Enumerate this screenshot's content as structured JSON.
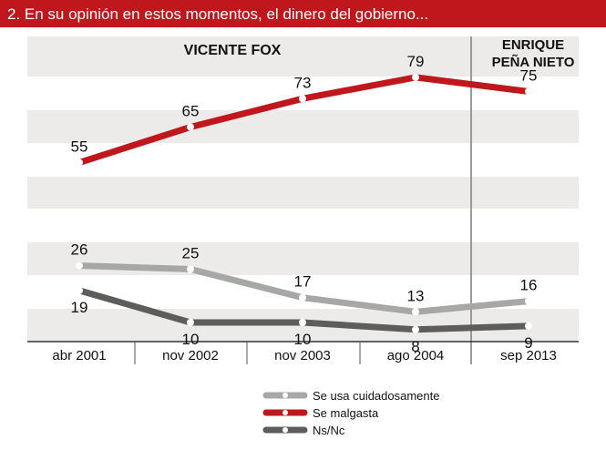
{
  "header": {
    "title": "2. En su opinión en estos momentos, el dinero del gobierno..."
  },
  "periods": {
    "left": "VICENTE FOX",
    "right_line1": "ENRIQUE",
    "right_line2": "PEÑA NIETO"
  },
  "colors": {
    "header_bg": "#c0171d",
    "plot_bg": "#ecebea",
    "band_white": "#ffffff",
    "series_cuidadosamente": "#a7a7a6",
    "series_malgasta": "#c0171d",
    "series_nsnc": "#5d5d5c",
    "divider": "#9a9a9a"
  },
  "chart_data": {
    "type": "line",
    "categories": [
      "abr 2001",
      "nov 2002",
      "nov 2003",
      "ago 2004",
      "sep 2013"
    ],
    "series": [
      {
        "name": "Se usa cuidadosamente",
        "values": [
          26,
          25,
          17,
          13,
          16
        ]
      },
      {
        "name": "Se malgasta",
        "values": [
          55,
          65,
          73,
          79,
          75
        ]
      },
      {
        "name": "Ns/Nc",
        "values": [
          19,
          10,
          10,
          8,
          9
        ]
      }
    ],
    "legend": [
      "Se usa cuidadosamente",
      "Se malgasta",
      "Ns/Nc"
    ],
    "legend_position": "bottom-center",
    "ylim": [
      0,
      90
    ]
  }
}
